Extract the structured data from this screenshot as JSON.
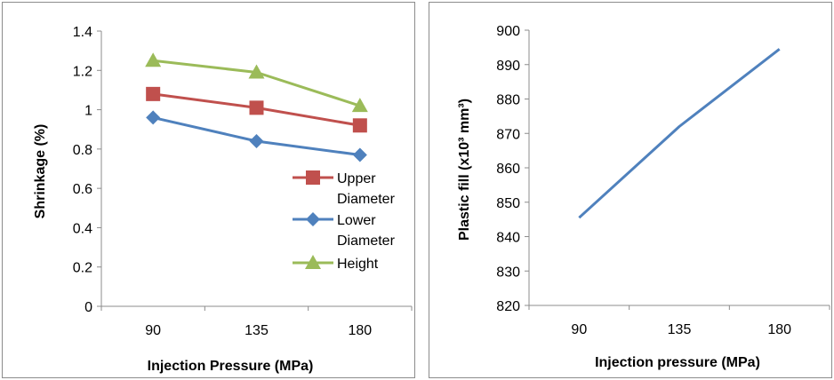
{
  "chart_data": [
    {
      "type": "line",
      "title": "",
      "xlabel": "Injection Pressure (MPa)",
      "ylabel": "Shrinkage (%)",
      "categories": [
        "90",
        "135",
        "180"
      ],
      "ylim": [
        0,
        1.4
      ],
      "yticks": [
        "0",
        "0.2",
        "0.4",
        "0.6",
        "0.8",
        "1",
        "1.2",
        "1.4"
      ],
      "grid": false,
      "legend_position": "right",
      "series": [
        {
          "name": "Upper Diameter",
          "legend_lines": [
            "Upper",
            "Diameter"
          ],
          "values": [
            1.08,
            1.01,
            0.92
          ],
          "color": "#c0504d",
          "marker": "square"
        },
        {
          "name": "Lower Diameter",
          "legend_lines": [
            "Lower",
            "Diameter"
          ],
          "values": [
            0.96,
            0.84,
            0.77
          ],
          "color": "#4f81bd",
          "marker": "diamond"
        },
        {
          "name": "Height",
          "legend_lines": [
            "Height"
          ],
          "values": [
            1.25,
            1.19,
            1.02
          ],
          "color": "#9bbb59",
          "marker": "triangle"
        }
      ]
    },
    {
      "type": "line",
      "title": "",
      "xlabel": "Injection pressure (MPa)",
      "ylabel": "Plastic fill (x10³ mm³)",
      "categories": [
        "90",
        "135",
        "180"
      ],
      "ylim": [
        820,
        900
      ],
      "yticks": [
        "820",
        "830",
        "840",
        "850",
        "860",
        "870",
        "880",
        "890",
        "900"
      ],
      "grid": false,
      "series": [
        {
          "values": [
            845.5,
            872,
            894.5
          ],
          "color": "#4f81bd",
          "marker": "none"
        }
      ]
    }
  ]
}
